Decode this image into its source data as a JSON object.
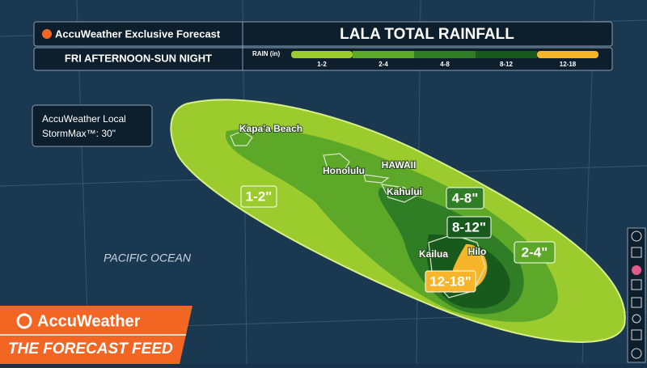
{
  "header": {
    "brand_line": "AccuWeather Exclusive Forecast",
    "title": "LALA TOTAL RAINFALL",
    "period": "FRI AFTERNOON-SUN NIGHT"
  },
  "legend": {
    "title": "RAIN (in)",
    "items": [
      {
        "label": "1-2",
        "color": "#9ccb2e"
      },
      {
        "label": "2-4",
        "color": "#5da829"
      },
      {
        "label": "4-8",
        "color": "#2f7d24"
      },
      {
        "label": "8-12",
        "color": "#175a1c"
      },
      {
        "label": "12-18",
        "color": "#f7b52a"
      }
    ]
  },
  "info_box": {
    "line1": "AccuWeather Local",
    "line2": "StormMax™: 30\""
  },
  "places": {
    "kapaa": "Kapa'a Beach",
    "honolulu": "Honolulu",
    "hawaii": "HAWAII",
    "kahului": "Kahului",
    "kailua": "Kailua",
    "hilo": "Hilo",
    "ocean": "PACIFIC OCEAN"
  },
  "zones": {
    "z1": "1-2\"",
    "z2": "2-4\"",
    "z3": "4-8\"",
    "z4": "8-12\"",
    "z5": "12-18\""
  },
  "footer": {
    "brand": "AccuWeather",
    "show": "THE FORECAST FEED"
  }
}
